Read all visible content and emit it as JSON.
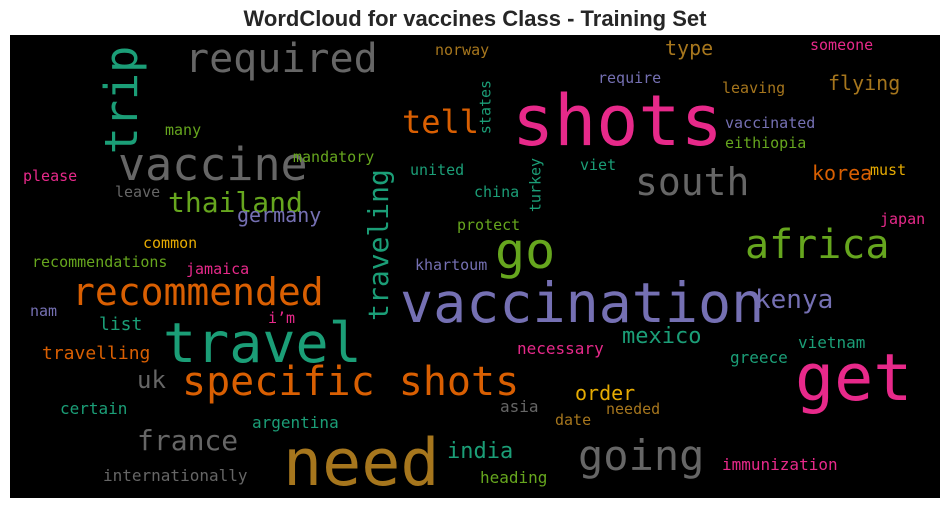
{
  "chart_data": {
    "type": "wordcloud",
    "title": "WordCloud for vaccines Class - Training Set",
    "background": "#000000",
    "words": [
      {
        "text": "required",
        "color": "#666666"
      },
      {
        "text": "shots",
        "color": "#e7298a"
      },
      {
        "text": "trip",
        "color": "#1b9e77"
      },
      {
        "text": "vaccine",
        "color": "#666666"
      },
      {
        "text": "tell",
        "color": "#d95f02"
      },
      {
        "text": "south",
        "color": "#666666"
      },
      {
        "text": "go",
        "color": "#66a61e"
      },
      {
        "text": "africa",
        "color": "#66a61e"
      },
      {
        "text": "thailand",
        "color": "#66a61e"
      },
      {
        "text": "germany",
        "color": "#7570b3"
      },
      {
        "text": "recommended",
        "color": "#d95f02"
      },
      {
        "text": "traveling",
        "color": "#1b9e77"
      },
      {
        "text": "vaccination",
        "color": "#7570b3"
      },
      {
        "text": "kenya",
        "color": "#7570b3"
      },
      {
        "text": "travel",
        "color": "#1b9e77"
      },
      {
        "text": "specific shots",
        "color": "#d95f02"
      },
      {
        "text": "get",
        "color": "#e7298a"
      },
      {
        "text": "uk",
        "color": "#666666"
      },
      {
        "text": "france",
        "color": "#666666"
      },
      {
        "text": "need",
        "color": "#a6761d"
      },
      {
        "text": "going",
        "color": "#666666"
      },
      {
        "text": "india",
        "color": "#1b9e77"
      },
      {
        "text": "heading",
        "color": "#66a61e"
      },
      {
        "text": "mexico",
        "color": "#1b9e77"
      },
      {
        "text": "order",
        "color": "#e6ab02"
      },
      {
        "text": "necessary",
        "color": "#e7298a"
      },
      {
        "text": "needed",
        "color": "#a6761d"
      },
      {
        "text": "asia",
        "color": "#666666"
      },
      {
        "text": "date",
        "color": "#a6761d"
      },
      {
        "text": "greece",
        "color": "#1b9e77"
      },
      {
        "text": "vietnam",
        "color": "#1b9e77"
      },
      {
        "text": "immunization",
        "color": "#e7298a"
      },
      {
        "text": "argentina",
        "color": "#1b9e77"
      },
      {
        "text": "certain",
        "color": "#1b9e77"
      },
      {
        "text": "internationally",
        "color": "#666666"
      },
      {
        "text": "travelling",
        "color": "#d95f02"
      },
      {
        "text": "list",
        "color": "#1b9e77"
      },
      {
        "text": "nam",
        "color": "#7570b3"
      },
      {
        "text": "i’m",
        "color": "#e7298a"
      },
      {
        "text": "jamaica",
        "color": "#e7298a"
      },
      {
        "text": "recommendations",
        "color": "#66a61e"
      },
      {
        "text": "common",
        "color": "#e6ab02"
      },
      {
        "text": "please",
        "color": "#e7298a"
      },
      {
        "text": "leave",
        "color": "#666666"
      },
      {
        "text": "many",
        "color": "#66a61e"
      },
      {
        "text": "mandatory",
        "color": "#66a61e"
      },
      {
        "text": "norway",
        "color": "#a6761d"
      },
      {
        "text": "states",
        "color": "#1b9e77"
      },
      {
        "text": "united",
        "color": "#1b9e77"
      },
      {
        "text": "china",
        "color": "#1b9e77"
      },
      {
        "text": "turkey",
        "color": "#1b9e77"
      },
      {
        "text": "viet",
        "color": "#1b9e77"
      },
      {
        "text": "protect",
        "color": "#66a61e"
      },
      {
        "text": "khartoum",
        "color": "#7570b3"
      },
      {
        "text": "require",
        "color": "#7570b3"
      },
      {
        "text": "type",
        "color": "#a6761d"
      },
      {
        "text": "leaving",
        "color": "#a6761d"
      },
      {
        "text": "flying",
        "color": "#a6761d"
      },
      {
        "text": "someone",
        "color": "#e7298a"
      },
      {
        "text": "vaccinated",
        "color": "#7570b3"
      },
      {
        "text": "eithiopia",
        "color": "#66a61e"
      },
      {
        "text": "must",
        "color": "#e6ab02"
      },
      {
        "text": "korea",
        "color": "#d95f02"
      },
      {
        "text": "japan",
        "color": "#e7298a"
      }
    ]
  }
}
